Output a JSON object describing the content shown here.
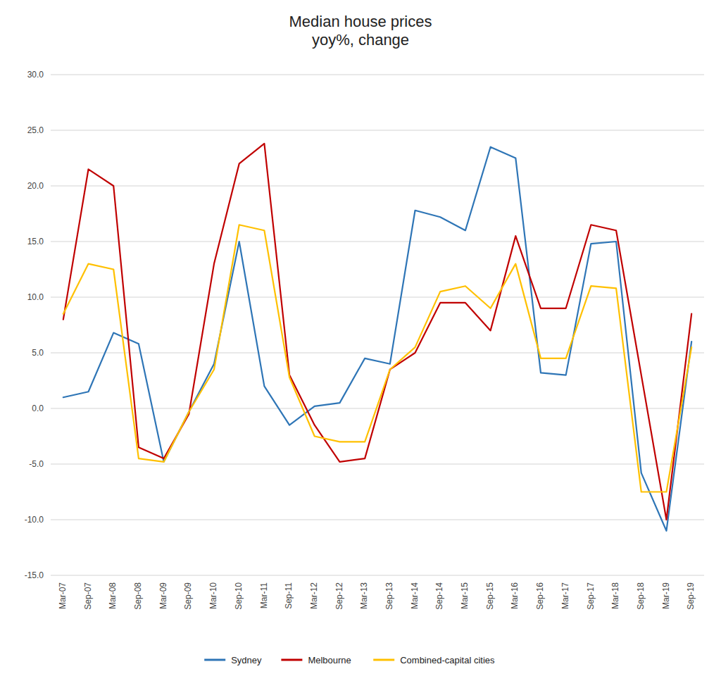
{
  "chart_data": {
    "type": "line",
    "title": "Median house prices\nyoy%, change",
    "categories": [
      "Mar-07",
      "Sep-07",
      "Mar-08",
      "Sep-08",
      "Mar-09",
      "Sep-09",
      "Mar-10",
      "Sep-10",
      "Mar-11",
      "Sep-11",
      "Mar-12",
      "Sep-12",
      "Mar-13",
      "Sep-13",
      "Mar-14",
      "Sep-14",
      "Mar-15",
      "Sep-15",
      "Mar-16",
      "Sep-16",
      "Mar-17",
      "Sep-17",
      "Mar-18",
      "Sep-18",
      "Mar-19",
      "Sep-19"
    ],
    "series": [
      {
        "name": "Sydney",
        "color": "#2E75B6",
        "values": [
          1.0,
          1.5,
          6.8,
          5.8,
          -4.8,
          -0.3,
          4.0,
          15.0,
          2.0,
          -1.5,
          0.2,
          0.5,
          4.5,
          4.0,
          17.8,
          17.2,
          16.0,
          23.5,
          22.5,
          3.2,
          3.0,
          14.8,
          15.0,
          -5.8,
          -11.0,
          6.0
        ]
      },
      {
        "name": "Melbourne",
        "color": "#C00000",
        "values": [
          8.0,
          21.5,
          20.0,
          -3.5,
          -4.5,
          -0.5,
          13.0,
          22.0,
          23.8,
          3.0,
          -1.5,
          -4.8,
          -4.5,
          3.5,
          5.0,
          9.5,
          9.5,
          7.0,
          15.5,
          9.0,
          9.0,
          16.5,
          16.0,
          3.0,
          -10.0,
          8.5
        ]
      },
      {
        "name": "Combined-capital cities",
        "color": "#FFC000",
        "values": [
          8.5,
          13.0,
          12.5,
          -4.5,
          -4.8,
          -0.3,
          3.5,
          16.5,
          16.0,
          2.8,
          -2.5,
          -3.0,
          -3.0,
          3.5,
          5.5,
          10.5,
          11.0,
          9.0,
          13.0,
          4.5,
          4.5,
          11.0,
          10.8,
          -7.5,
          -7.5,
          5.5
        ]
      }
    ],
    "ylim": [
      -15.0,
      30.0
    ],
    "yticks": [
      {
        "value": -15.0,
        "label": "-15.0"
      },
      {
        "value": -10.0,
        "label": "-10.0"
      },
      {
        "value": -5.0,
        "label": "-5.0"
      },
      {
        "value": 0.0,
        "label": "0.0"
      },
      {
        "value": 5.0,
        "label": "5.0"
      },
      {
        "value": 10.0,
        "label": "10.0"
      },
      {
        "value": 15.0,
        "label": "15.0"
      },
      {
        "value": 20.0,
        "label": "20.0"
      },
      {
        "value": 25.0,
        "label": "25.0"
      },
      {
        "value": 30.0,
        "label": "30.0"
      }
    ],
    "grid": true,
    "legend": "bottom"
  }
}
